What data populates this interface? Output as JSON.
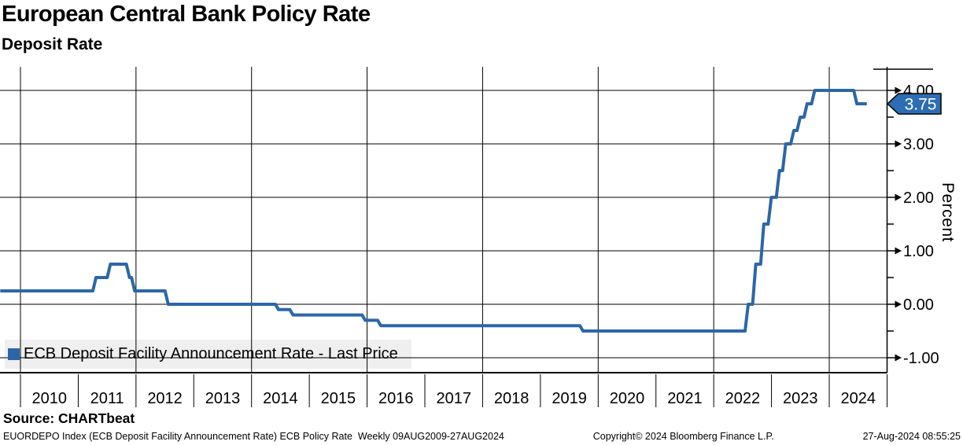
{
  "header": {
    "title": "European Central Bank Policy Rate",
    "subtitle": "Deposit Rate"
  },
  "legend": {
    "label": "ECB Deposit Facility Announcement Rate - Last Price"
  },
  "source": "Source: CHARTbeat",
  "footer": {
    "left": "EUORDEPO Index (ECB Deposit Facility Announcement Rate) ECB Policy Rate  Weekly 09AUG2009-27AUG2024",
    "center": "Copyright© 2024 Bloomberg Finance L.P.",
    "right": "27-Aug-2024 08:55:25"
  },
  "colors": {
    "line": "#2b67a8",
    "badge_fill": "#2d6db3",
    "badge_text": "#ffffff",
    "grid": "#000000",
    "legend_bg": "#efefef"
  },
  "chart_data": {
    "type": "line",
    "step": true,
    "title": "European Central Bank Policy Rate",
    "subtitle": "Deposit Rate",
    "series_name": "ECB Deposit Facility Announcement Rate - Last Price",
    "ylabel": "Percent",
    "ylim": [
      -1.35,
      4.45
    ],
    "x_range_years": [
      2009.65,
      2025.0
    ],
    "grid": true,
    "legend_position": "bottom-left",
    "y_major_ticks": [
      {
        "v": 4,
        "label": "4.00"
      },
      {
        "v": 3,
        "label": "3.00"
      },
      {
        "v": 2,
        "label": "2.00"
      },
      {
        "v": 1,
        "label": "1.00"
      },
      {
        "v": 0,
        "label": "0.00"
      },
      {
        "v": -1,
        "label": "-1.00"
      }
    ],
    "y_minor_ticks": [
      3.5,
      2.5,
      1.5,
      0.5,
      -0.5
    ],
    "x_years": [
      "2010",
      "2011",
      "2012",
      "2013",
      "2014",
      "2015",
      "2016",
      "2017",
      "2018",
      "2019",
      "2020",
      "2021",
      "2022",
      "2023",
      "2024"
    ],
    "x_gridline_years": [
      2010,
      2012,
      2014,
      2016,
      2018,
      2020,
      2022,
      2024
    ],
    "steps_decimal_year_percent": [
      [
        2009.65,
        0.25
      ],
      [
        2011.28,
        0.5
      ],
      [
        2011.53,
        0.75
      ],
      [
        2011.86,
        0.5
      ],
      [
        2011.95,
        0.25
      ],
      [
        2012.53,
        0.0
      ],
      [
        2014.44,
        -0.1
      ],
      [
        2014.69,
        -0.2
      ],
      [
        2015.94,
        -0.3
      ],
      [
        2016.21,
        -0.4
      ],
      [
        2019.71,
        -0.5
      ],
      [
        2022.57,
        0.0
      ],
      [
        2022.7,
        0.75
      ],
      [
        2022.84,
        1.5
      ],
      [
        2022.97,
        2.0
      ],
      [
        2023.11,
        2.5
      ],
      [
        2023.22,
        3.0
      ],
      [
        2023.36,
        3.25
      ],
      [
        2023.47,
        3.5
      ],
      [
        2023.59,
        3.75
      ],
      [
        2023.72,
        4.0
      ],
      [
        2024.45,
        3.75
      ]
    ],
    "x_end_decimal_year": 2024.65,
    "last_price": 3.75,
    "last_price_label": "3.75"
  }
}
